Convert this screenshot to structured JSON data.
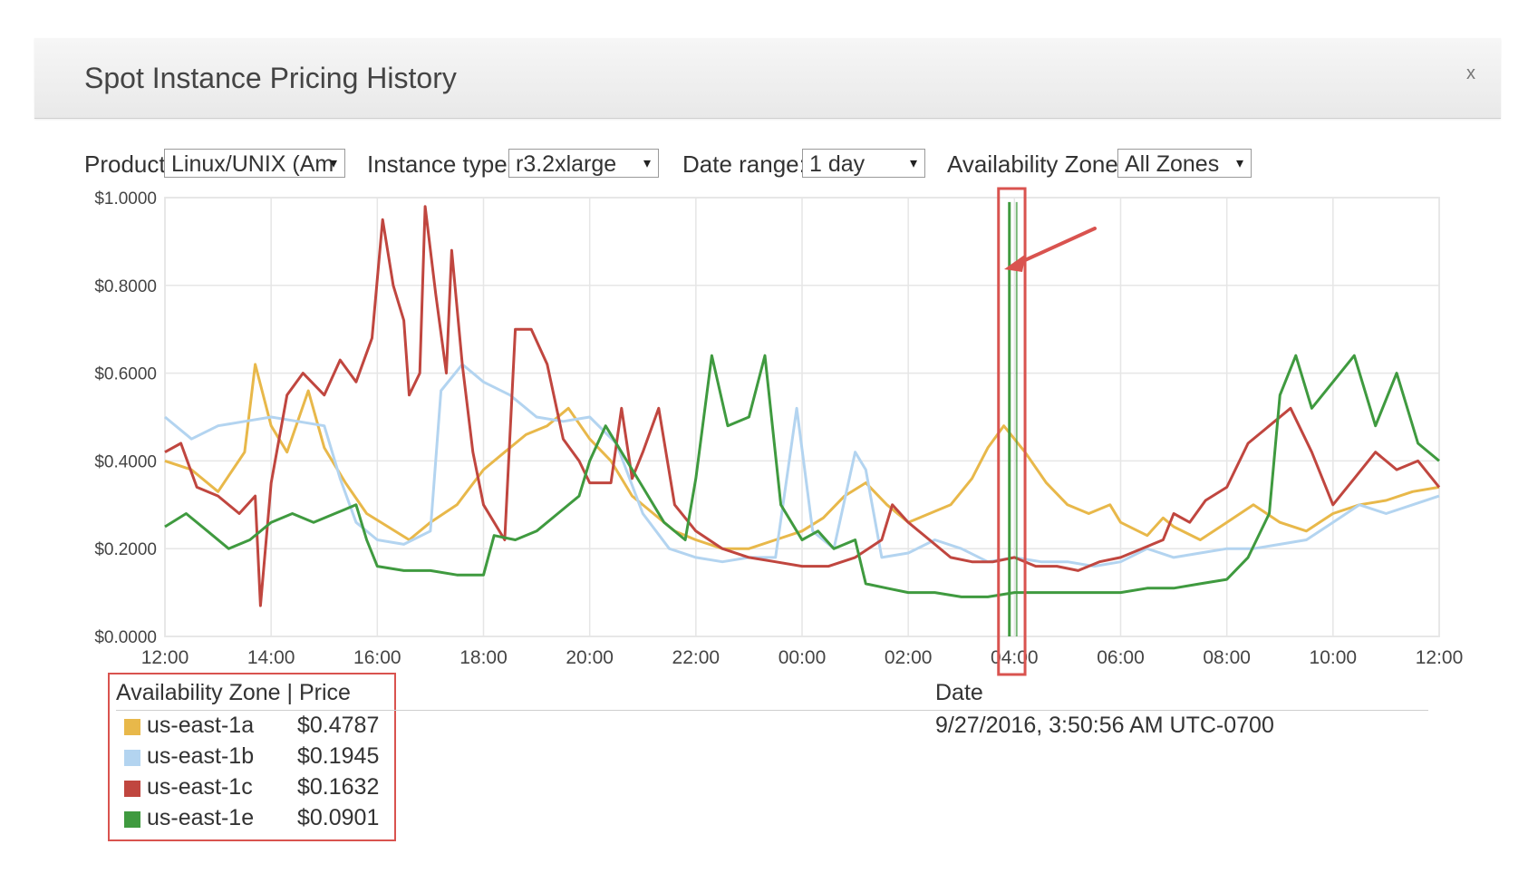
{
  "window": {
    "title": "Spot Instance Pricing History",
    "close_label": "x"
  },
  "controls": {
    "product": {
      "label": "Product:",
      "value": "Linux/UNIX (Am"
    },
    "instance_type": {
      "label": "Instance type:",
      "value": "r3.2xlarge"
    },
    "date_range": {
      "label": "Date range:",
      "value": "1 day"
    },
    "availability_zone": {
      "label": "Availability Zone:",
      "value": "All Zones"
    }
  },
  "icons": {
    "dropdown_arrow": "▾"
  },
  "legend": {
    "header": "Availability Zone | Price",
    "date_header": "Date",
    "date_value": "9/27/2016, 3:50:56 AM UTC-0700",
    "rows": [
      {
        "zone": "us-east-1a",
        "price": "$0.4787",
        "color": "#e8b84a"
      },
      {
        "zone": "us-east-1b",
        "price": "$0.1945",
        "color": "#b3d4f0"
      },
      {
        "zone": "us-east-1c",
        "price": "$0.1632",
        "color": "#c0463f"
      },
      {
        "zone": "us-east-1e",
        "price": "$0.0901",
        "color": "#3f9a3f"
      }
    ]
  },
  "highlight": {
    "color": "#d9534f"
  },
  "chart_data": {
    "type": "line",
    "ytick_labels": [
      "$0.0000",
      "$0.2000",
      "$0.4000",
      "$0.6000",
      "$0.8000",
      "$1.0000"
    ],
    "xtick_labels": [
      "12:00",
      "14:00",
      "16:00",
      "18:00",
      "20:00",
      "22:00",
      "00:00",
      "02:00",
      "04:00",
      "06:00",
      "08:00",
      "10:00",
      "12:00"
    ],
    "ylim": [
      0,
      1.0
    ],
    "xlim_hours": [
      0,
      24
    ],
    "grid": true,
    "highlight_hours": [
      15.7,
      16.2
    ],
    "series": [
      {
        "name": "us-east-1a",
        "color": "#e8b84a",
        "points": [
          [
            0,
            0.4
          ],
          [
            0.5,
            0.38
          ],
          [
            1,
            0.33
          ],
          [
            1.5,
            0.42
          ],
          [
            1.7,
            0.62
          ],
          [
            2,
            0.48
          ],
          [
            2.3,
            0.42
          ],
          [
            2.7,
            0.56
          ],
          [
            3,
            0.43
          ],
          [
            3.4,
            0.35
          ],
          [
            3.8,
            0.28
          ],
          [
            4.2,
            0.25
          ],
          [
            4.6,
            0.22
          ],
          [
            5,
            0.26
          ],
          [
            5.5,
            0.3
          ],
          [
            6,
            0.38
          ],
          [
            6.4,
            0.42
          ],
          [
            6.8,
            0.46
          ],
          [
            7.2,
            0.48
          ],
          [
            7.6,
            0.52
          ],
          [
            8,
            0.45
          ],
          [
            8.4,
            0.4
          ],
          [
            8.8,
            0.32
          ],
          [
            9.2,
            0.28
          ],
          [
            9.6,
            0.24
          ],
          [
            10,
            0.22
          ],
          [
            10.5,
            0.2
          ],
          [
            11,
            0.2
          ],
          [
            11.5,
            0.22
          ],
          [
            12,
            0.24
          ],
          [
            12.4,
            0.27
          ],
          [
            12.8,
            0.32
          ],
          [
            13.2,
            0.35
          ],
          [
            13.6,
            0.3
          ],
          [
            14,
            0.26
          ],
          [
            14.4,
            0.28
          ],
          [
            14.8,
            0.3
          ],
          [
            15.2,
            0.36
          ],
          [
            15.5,
            0.43
          ],
          [
            15.8,
            0.48
          ],
          [
            16.2,
            0.42
          ],
          [
            16.6,
            0.35
          ],
          [
            17,
            0.3
          ],
          [
            17.4,
            0.28
          ],
          [
            17.8,
            0.3
          ],
          [
            18,
            0.26
          ],
          [
            18.5,
            0.23
          ],
          [
            18.8,
            0.27
          ],
          [
            19,
            0.25
          ],
          [
            19.5,
            0.22
          ],
          [
            20,
            0.26
          ],
          [
            20.5,
            0.3
          ],
          [
            21,
            0.26
          ],
          [
            21.5,
            0.24
          ],
          [
            22,
            0.28
          ],
          [
            22.5,
            0.3
          ],
          [
            23,
            0.31
          ],
          [
            23.5,
            0.33
          ],
          [
            24,
            0.34
          ]
        ]
      },
      {
        "name": "us-east-1b",
        "color": "#b3d4f0",
        "points": [
          [
            0,
            0.5
          ],
          [
            0.5,
            0.45
          ],
          [
            1,
            0.48
          ],
          [
            1.5,
            0.49
          ],
          [
            2,
            0.5
          ],
          [
            2.5,
            0.49
          ],
          [
            3,
            0.48
          ],
          [
            3.3,
            0.36
          ],
          [
            3.6,
            0.26
          ],
          [
            4,
            0.22
          ],
          [
            4.5,
            0.21
          ],
          [
            5,
            0.24
          ],
          [
            5.2,
            0.56
          ],
          [
            5.6,
            0.62
          ],
          [
            6,
            0.58
          ],
          [
            6.5,
            0.55
          ],
          [
            7,
            0.5
          ],
          [
            7.5,
            0.49
          ],
          [
            8,
            0.5
          ],
          [
            8.5,
            0.44
          ],
          [
            9,
            0.28
          ],
          [
            9.5,
            0.2
          ],
          [
            10,
            0.18
          ],
          [
            10.5,
            0.17
          ],
          [
            11,
            0.18
          ],
          [
            11.5,
            0.18
          ],
          [
            11.9,
            0.52
          ],
          [
            12.2,
            0.24
          ],
          [
            12.6,
            0.2
          ],
          [
            13,
            0.42
          ],
          [
            13.2,
            0.38
          ],
          [
            13.5,
            0.18
          ],
          [
            14,
            0.19
          ],
          [
            14.5,
            0.22
          ],
          [
            15,
            0.2
          ],
          [
            15.5,
            0.17
          ],
          [
            16,
            0.18
          ],
          [
            16.5,
            0.17
          ],
          [
            17,
            0.17
          ],
          [
            17.5,
            0.16
          ],
          [
            18,
            0.17
          ],
          [
            18.5,
            0.2
          ],
          [
            19,
            0.18
          ],
          [
            19.5,
            0.19
          ],
          [
            20,
            0.2
          ],
          [
            20.5,
            0.2
          ],
          [
            21,
            0.21
          ],
          [
            21.5,
            0.22
          ],
          [
            22,
            0.26
          ],
          [
            22.5,
            0.3
          ],
          [
            23,
            0.28
          ],
          [
            23.5,
            0.3
          ],
          [
            24,
            0.32
          ]
        ]
      },
      {
        "name": "us-east-1c",
        "color": "#c0463f",
        "points": [
          [
            0,
            0.42
          ],
          [
            0.3,
            0.44
          ],
          [
            0.6,
            0.34
          ],
          [
            1,
            0.32
          ],
          [
            1.4,
            0.28
          ],
          [
            1.7,
            0.32
          ],
          [
            1.8,
            0.07
          ],
          [
            2,
            0.35
          ],
          [
            2.3,
            0.55
          ],
          [
            2.6,
            0.6
          ],
          [
            3,
            0.55
          ],
          [
            3.3,
            0.63
          ],
          [
            3.6,
            0.58
          ],
          [
            3.9,
            0.68
          ],
          [
            4.1,
            0.95
          ],
          [
            4.3,
            0.8
          ],
          [
            4.5,
            0.72
          ],
          [
            4.6,
            0.55
          ],
          [
            4.8,
            0.6
          ],
          [
            4.9,
            0.98
          ],
          [
            5.1,
            0.78
          ],
          [
            5.3,
            0.6
          ],
          [
            5.4,
            0.88
          ],
          [
            5.6,
            0.62
          ],
          [
            5.8,
            0.42
          ],
          [
            6,
            0.3
          ],
          [
            6.4,
            0.22
          ],
          [
            6.6,
            0.7
          ],
          [
            6.9,
            0.7
          ],
          [
            7.2,
            0.62
          ],
          [
            7.5,
            0.45
          ],
          [
            7.8,
            0.4
          ],
          [
            8,
            0.35
          ],
          [
            8.4,
            0.35
          ],
          [
            8.6,
            0.52
          ],
          [
            8.8,
            0.36
          ],
          [
            9,
            0.42
          ],
          [
            9.3,
            0.52
          ],
          [
            9.6,
            0.3
          ],
          [
            10,
            0.24
          ],
          [
            10.5,
            0.2
          ],
          [
            11,
            0.18
          ],
          [
            11.5,
            0.17
          ],
          [
            12,
            0.16
          ],
          [
            12.5,
            0.16
          ],
          [
            13,
            0.18
          ],
          [
            13.5,
            0.22
          ],
          [
            13.7,
            0.3
          ],
          [
            14,
            0.26
          ],
          [
            14.4,
            0.22
          ],
          [
            14.8,
            0.18
          ],
          [
            15.2,
            0.17
          ],
          [
            15.6,
            0.17
          ],
          [
            16,
            0.18
          ],
          [
            16.4,
            0.16
          ],
          [
            16.8,
            0.16
          ],
          [
            17.2,
            0.15
          ],
          [
            17.6,
            0.17
          ],
          [
            18,
            0.18
          ],
          [
            18.4,
            0.2
          ],
          [
            18.8,
            0.22
          ],
          [
            19,
            0.28
          ],
          [
            19.3,
            0.26
          ],
          [
            19.6,
            0.31
          ],
          [
            20,
            0.34
          ],
          [
            20.4,
            0.44
          ],
          [
            20.8,
            0.48
          ],
          [
            21.2,
            0.52
          ],
          [
            21.6,
            0.42
          ],
          [
            22,
            0.3
          ],
          [
            22.4,
            0.36
          ],
          [
            22.8,
            0.42
          ],
          [
            23.2,
            0.38
          ],
          [
            23.6,
            0.4
          ],
          [
            24,
            0.34
          ]
        ]
      },
      {
        "name": "us-east-1e",
        "color": "#3f9a3f",
        "points": [
          [
            0,
            0.25
          ],
          [
            0.4,
            0.28
          ],
          [
            0.8,
            0.24
          ],
          [
            1.2,
            0.2
          ],
          [
            1.6,
            0.22
          ],
          [
            2,
            0.26
          ],
          [
            2.4,
            0.28
          ],
          [
            2.8,
            0.26
          ],
          [
            3.2,
            0.28
          ],
          [
            3.6,
            0.3
          ],
          [
            3.8,
            0.22
          ],
          [
            4,
            0.16
          ],
          [
            4.5,
            0.15
          ],
          [
            5,
            0.15
          ],
          [
            5.5,
            0.14
          ],
          [
            6,
            0.14
          ],
          [
            6.2,
            0.23
          ],
          [
            6.6,
            0.22
          ],
          [
            7,
            0.24
          ],
          [
            7.4,
            0.28
          ],
          [
            7.8,
            0.32
          ],
          [
            8,
            0.4
          ],
          [
            8.3,
            0.48
          ],
          [
            8.6,
            0.42
          ],
          [
            9,
            0.34
          ],
          [
            9.4,
            0.26
          ],
          [
            9.8,
            0.22
          ],
          [
            10,
            0.36
          ],
          [
            10.3,
            0.64
          ],
          [
            10.6,
            0.48
          ],
          [
            11,
            0.5
          ],
          [
            11.3,
            0.64
          ],
          [
            11.6,
            0.3
          ],
          [
            12,
            0.22
          ],
          [
            12.3,
            0.24
          ],
          [
            12.6,
            0.2
          ],
          [
            13,
            0.22
          ],
          [
            13.2,
            0.12
          ],
          [
            13.6,
            0.11
          ],
          [
            14,
            0.1
          ],
          [
            14.5,
            0.1
          ],
          [
            15,
            0.09
          ],
          [
            15.5,
            0.09
          ],
          [
            16,
            0.1
          ],
          [
            16.5,
            0.1
          ],
          [
            17,
            0.1
          ],
          [
            17.5,
            0.1
          ],
          [
            18,
            0.1
          ],
          [
            18.5,
            0.11
          ],
          [
            19,
            0.11
          ],
          [
            19.5,
            0.12
          ],
          [
            20,
            0.13
          ],
          [
            20.4,
            0.18
          ],
          [
            20.8,
            0.28
          ],
          [
            21,
            0.55
          ],
          [
            21.3,
            0.64
          ],
          [
            21.6,
            0.52
          ],
          [
            22,
            0.58
          ],
          [
            22.4,
            0.64
          ],
          [
            22.8,
            0.48
          ],
          [
            23.2,
            0.6
          ],
          [
            23.6,
            0.44
          ],
          [
            24,
            0.4
          ]
        ]
      }
    ]
  }
}
